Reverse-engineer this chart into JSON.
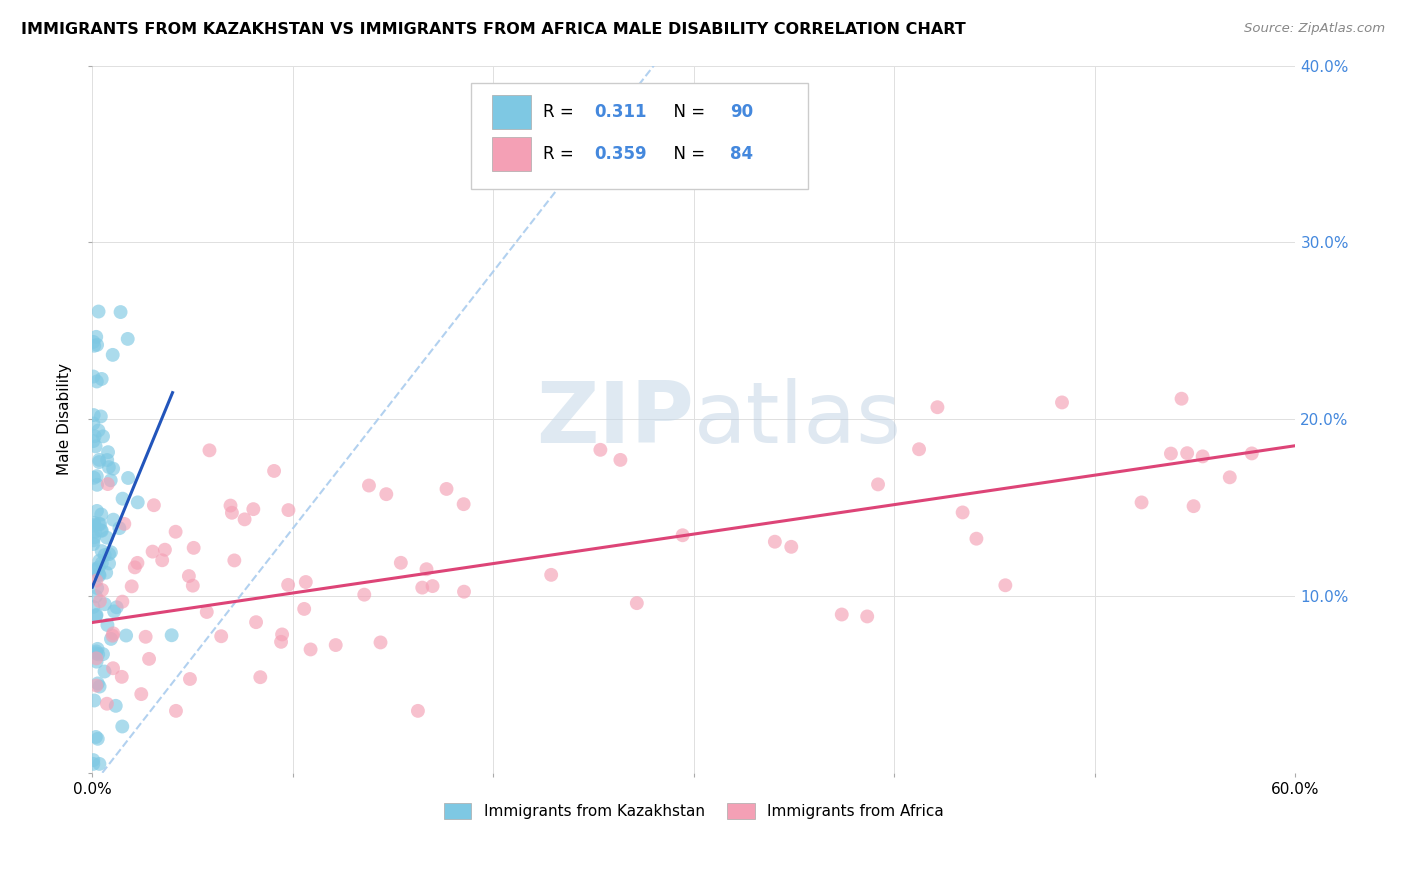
{
  "title": "IMMIGRANTS FROM KAZAKHSTAN VS IMMIGRANTS FROM AFRICA MALE DISABILITY CORRELATION CHART",
  "source": "Source: ZipAtlas.com",
  "ylabel": "Male Disability",
  "legend_label1": "Immigrants from Kazakhstan",
  "legend_label2": "Immigrants from Africa",
  "R1": 0.311,
  "N1": 90,
  "R2": 0.359,
  "N2": 84,
  "xlim": [
    0.0,
    0.6
  ],
  "ylim": [
    0.0,
    0.4
  ],
  "color1": "#7EC8E3",
  "color2": "#F4A0B5",
  "trendline1_color": "#2255BB",
  "trendline2_color": "#DD4477",
  "refline_color": "#AACCEE",
  "right_tick_color": "#4488DD",
  "watermark_color": "#D8E8F0",
  "watermark_text": "ZIPatlas",
  "kaz_seed": 77,
  "africa_seed": 88
}
